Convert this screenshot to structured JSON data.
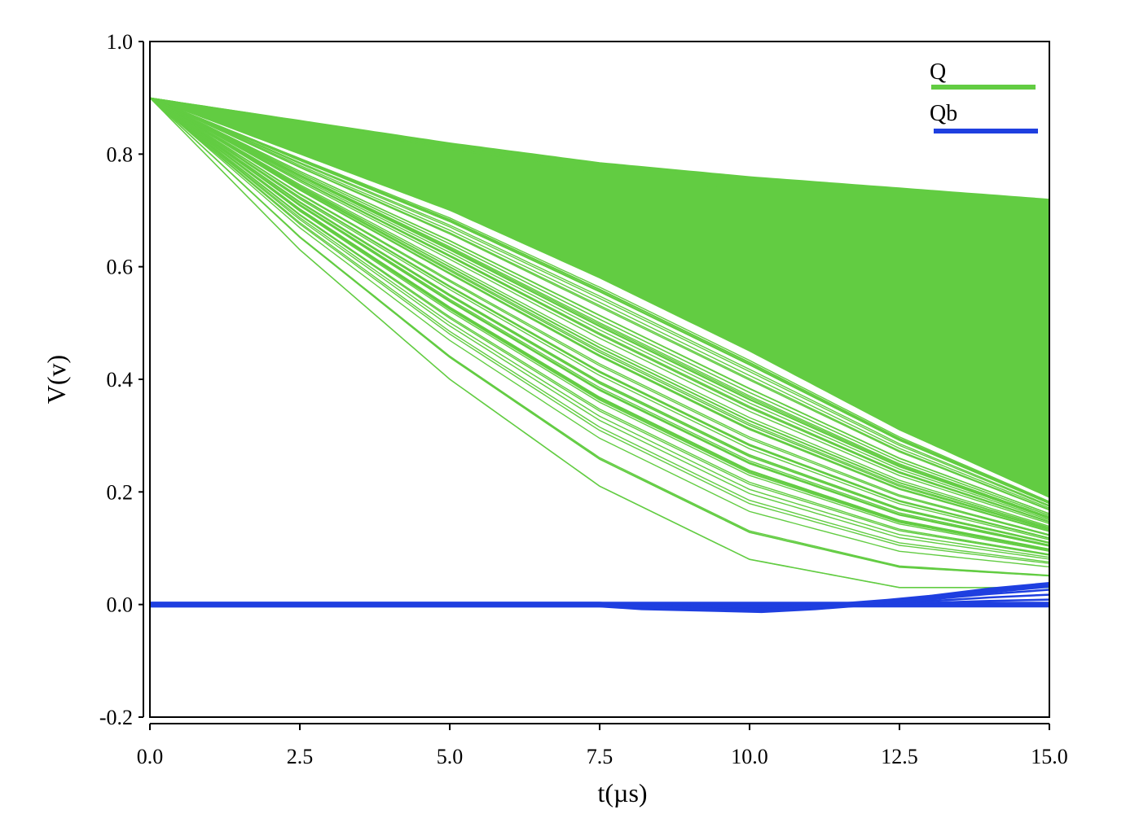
{
  "chart_data": {
    "type": "line",
    "title": "",
    "xlabel": "t(µs)",
    "ylabel": "V(v)",
    "xlim": [
      0,
      15
    ],
    "ylim": [
      -0.2,
      1.0
    ],
    "x_ticks": [
      0.0,
      2.5,
      5.0,
      7.5,
      10.0,
      12.5,
      15.0
    ],
    "x_tick_labels": [
      "0.0",
      "2.5",
      "5.0",
      "7.5",
      "10.0",
      "12.5",
      "15.0"
    ],
    "y_ticks": [
      -0.2,
      0.0,
      0.2,
      0.4,
      0.6,
      0.8,
      1.0
    ],
    "y_tick_labels": [
      "-0.2",
      "0.0",
      "0.2",
      "0.4",
      "0.6",
      "0.8",
      "1.0"
    ],
    "grid": false,
    "legend_position": "top-right",
    "series": [
      {
        "name": "Q",
        "color": "#62cc42",
        "description": "Monte Carlo ensemble of discharge curves starting at 0.9 V",
        "upper_envelope": {
          "x": [
            0,
            2.5,
            5,
            7.5,
            10,
            12.5,
            15
          ],
          "y": [
            0.9,
            0.86,
            0.82,
            0.785,
            0.76,
            0.74,
            0.72
          ]
        },
        "dense_lower_bound": {
          "x": [
            0,
            2.5,
            5,
            7.5,
            10,
            12.5,
            15
          ],
          "y": [
            0.9,
            0.8,
            0.7,
            0.58,
            0.45,
            0.31,
            0.19
          ]
        },
        "lower_envelope": {
          "x": [
            0,
            2.5,
            5,
            7.5,
            10,
            12.5,
            15
          ],
          "y": [
            0.9,
            0.63,
            0.4,
            0.21,
            0.08,
            0.03,
            0.03
          ]
        }
      },
      {
        "name": "Qb",
        "color": "#1f3fe0",
        "description": "Ensemble near 0 V with slight spread toward the end",
        "x": [
          0,
          2.5,
          5,
          7.5,
          8.2,
          10.2,
          11.1,
          12.3,
          13,
          14,
          15
        ],
        "y": [
          0.0,
          0.0,
          0.0,
          0.0,
          -0.005,
          -0.01,
          -0.005,
          0.005,
          0.012,
          0.025,
          0.035
        ]
      }
    ]
  }
}
